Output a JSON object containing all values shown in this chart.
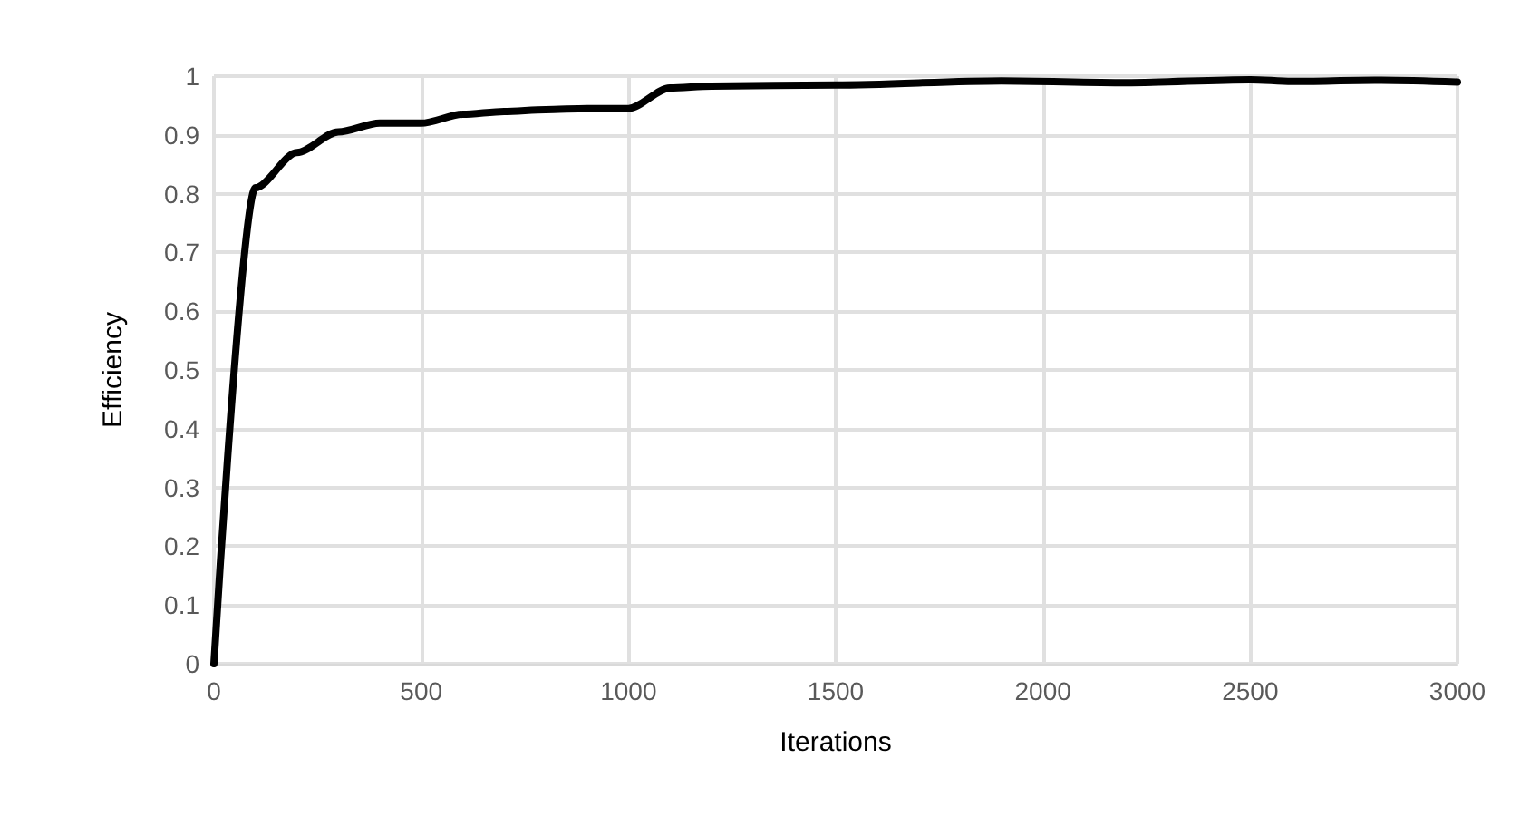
{
  "chart_data": {
    "type": "line",
    "xlabel": "Iterations",
    "ylabel": "Efficiency",
    "x": [
      0,
      100,
      200,
      300,
      400,
      500,
      600,
      700,
      800,
      900,
      1000,
      1100,
      1200,
      1500,
      1900,
      2200,
      2500,
      2600,
      2800,
      3000
    ],
    "series": [
      {
        "color": "#000000",
        "values": [
          0,
          0.81,
          0.87,
          0.905,
          0.92,
          0.92,
          0.935,
          0.94,
          0.943,
          0.945,
          0.945,
          0.98,
          0.983,
          0.985,
          0.992,
          0.989,
          0.994,
          0.991,
          0.993,
          0.99
        ]
      }
    ],
    "xlim": [
      0,
      3000
    ],
    "xticks": [
      0,
      500,
      1000,
      1500,
      2000,
      2500,
      3000
    ],
    "ylim": [
      0,
      1
    ],
    "yticks": [
      0,
      0.1,
      0.2,
      0.3,
      0.4,
      0.5,
      0.6,
      0.7,
      0.8,
      0.9,
      1
    ],
    "grid": true,
    "marker": "none",
    "line_style": "solid"
  }
}
